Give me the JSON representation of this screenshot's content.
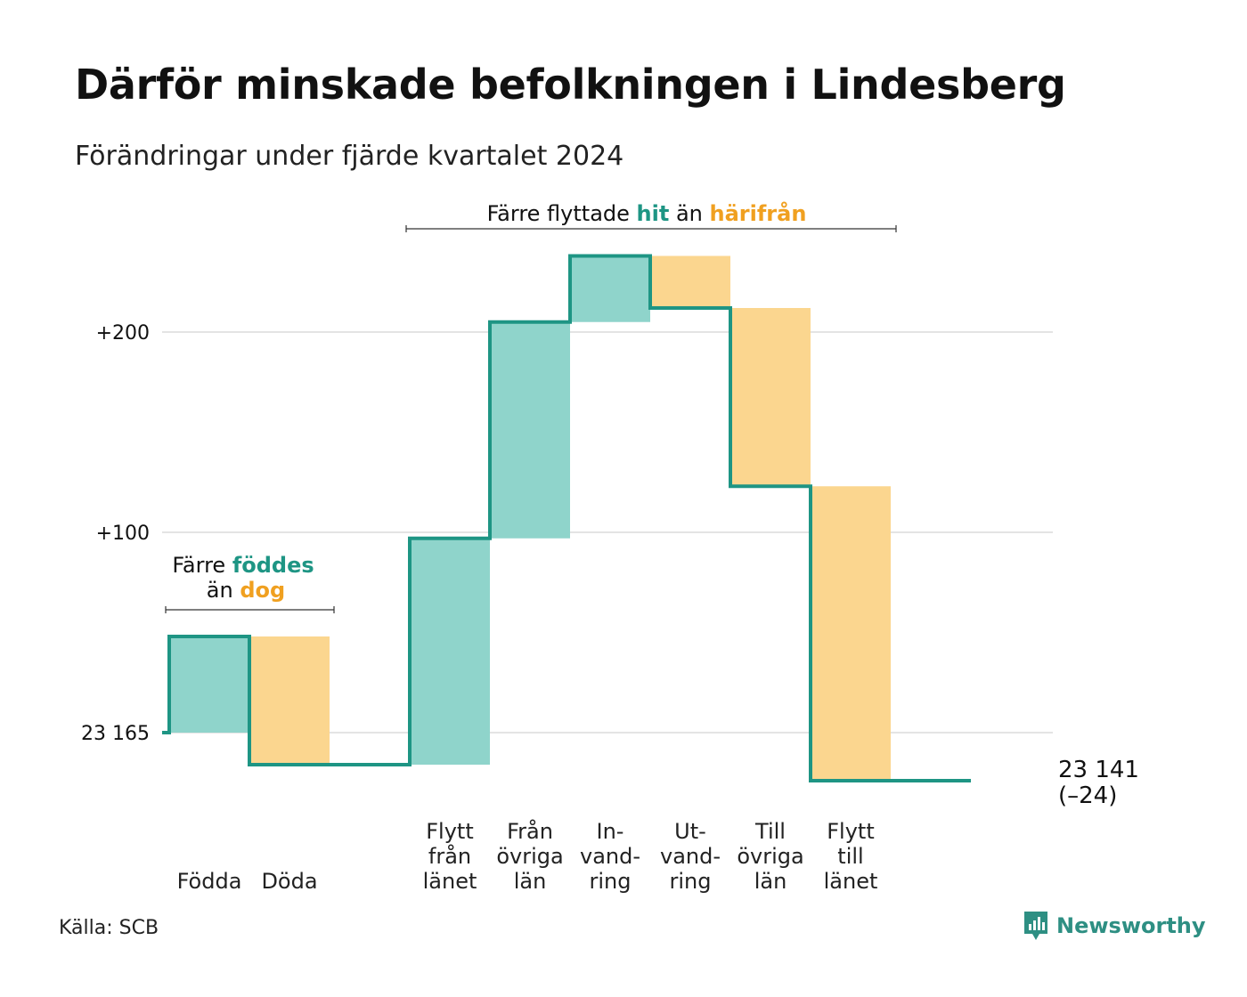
{
  "title": "Därför minskade befolkningen i Lindesberg",
  "subtitle": "Förändringar under fjärde kvartalet 2024",
  "source": "Källa: SCB",
  "brand": "Newsworthy",
  "colors": {
    "increase_fill": "#8fd4cb",
    "decrease_fill": "#fbd68f",
    "line": "#1e9584",
    "teal_text": "#1e9584",
    "orange_text": "#f0a020",
    "grid": "#e4e4e4"
  },
  "annotations": {
    "births": {
      "line1_prefix": "Färre",
      "line1_hl": "föddes",
      "line2_prefix": "än",
      "line2_hl": "dog"
    },
    "migration": {
      "prefix": "Färre flyttade",
      "hl1": "hit",
      "mid": "än",
      "hl2": "härifrån"
    }
  },
  "chart_data": {
    "type": "waterfall",
    "start_value": 23165,
    "start_label": "23 165",
    "end_label_line1": "23 141",
    "end_label_line2": "(–24)",
    "yticks": [
      {
        "value": 0,
        "label": "23 165"
      },
      {
        "value": 100,
        "label": "+100"
      },
      {
        "value": 200,
        "label": "+200"
      }
    ],
    "ylim": [
      -24,
      240
    ],
    "steps": [
      {
        "label": [
          "Födda"
        ],
        "change": 48,
        "kind": "increase"
      },
      {
        "label": [
          "Döda"
        ],
        "change": -64,
        "kind": "decrease"
      },
      {
        "label": [],
        "change": 0,
        "kind": "gap"
      },
      {
        "label": [
          "Flytt",
          "från",
          "länet"
        ],
        "change": 113,
        "kind": "increase"
      },
      {
        "label": [
          "Från",
          "övriga",
          "län"
        ],
        "change": 108,
        "kind": "increase"
      },
      {
        "label": [
          "In-",
          "vand-",
          "ring"
        ],
        "change": 33,
        "kind": "increase"
      },
      {
        "label": [
          "Ut-",
          "vand-",
          "ring"
        ],
        "change": -26,
        "kind": "decrease"
      },
      {
        "label": [
          "Till",
          "övriga",
          "län"
        ],
        "change": -89,
        "kind": "decrease"
      },
      {
        "label": [
          "Flytt",
          "till",
          "länet"
        ],
        "change": -147,
        "kind": "decrease"
      },
      {
        "label": [],
        "change": 0,
        "kind": "gap"
      }
    ],
    "end_change": -24
  }
}
